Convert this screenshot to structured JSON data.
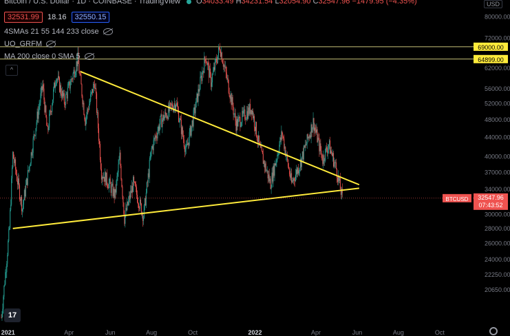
{
  "header": {
    "symbol_title": "Bitcoin / U.S. Dollar · 1D · COINBASE · TradingView",
    "open_label": "O",
    "open": "34033.49",
    "high_label": "H",
    "high": "34231.54",
    "low_label": "L",
    "low": "32054.90",
    "close_label": "C",
    "close": "32547.96",
    "change": "−1479.95 (−4.35%)",
    "bid": "32531.99",
    "spread": "18.16",
    "ask": "32550.15",
    "currency_button": "USD"
  },
  "indicators": [
    {
      "label": "4SMAs 21 55 144 233 close"
    },
    {
      "label": "UO_GRFM"
    },
    {
      "label": "MA 200 close 0 SMA 5"
    }
  ],
  "colors": {
    "background": "#000000",
    "up": "#26a69a",
    "down": "#ef5350",
    "trendline": "#ffeb3b",
    "level_label": "#ffeb3b",
    "price_label": "#ef5350"
  },
  "icons": {
    "logo": "tradingview-logo-icon",
    "settings": "gear-icon",
    "collapse": "chevron-up-icon",
    "visibility": "eye-off-icon"
  },
  "chart_data": {
    "type": "candlestick",
    "symbol": "BTCUSD",
    "y_scale": "log",
    "ylim": [
      17000,
      87000
    ],
    "y_ticks": [
      80000,
      72000,
      62000,
      56000,
      52000,
      48000,
      44000,
      40000,
      37000,
      34000,
      30000,
      28000,
      26000,
      24000,
      22250,
      20650
    ],
    "x_ticks": [
      "2021",
      "Apr",
      "Jun",
      "Aug",
      "Oct",
      "2022",
      "Apr",
      "Jun",
      "Aug",
      "Oct"
    ],
    "x_tick_dates": [
      "2021-01-01",
      "2021-04-01",
      "2021-06-01",
      "2021-08-01",
      "2021-10-01",
      "2022-01-01",
      "2022-04-01",
      "2022-06-01",
      "2022-08-01",
      "2022-10-01"
    ],
    "xlim": [
      "2020-12-20",
      "2022-11-20"
    ],
    "price_path": [
      [
        "2020-12-22",
        18000
      ],
      [
        "2021-01-03",
        28000
      ],
      [
        "2021-01-08",
        40500
      ],
      [
        "2021-01-22",
        31000
      ],
      [
        "2021-02-08",
        44000
      ],
      [
        "2021-02-21",
        57000
      ],
      [
        "2021-02-28",
        45000
      ],
      [
        "2021-03-13",
        60000
      ],
      [
        "2021-03-25",
        52500
      ],
      [
        "2021-04-14",
        64800
      ],
      [
        "2021-04-25",
        48000
      ],
      [
        "2021-05-09",
        58000
      ],
      [
        "2021-05-19",
        37000
      ],
      [
        "2021-05-30",
        35000
      ],
      [
        "2021-06-08",
        33000
      ],
      [
        "2021-06-15",
        40000
      ],
      [
        "2021-06-22",
        29500
      ],
      [
        "2021-07-05",
        35000
      ],
      [
        "2021-07-20",
        29800
      ],
      [
        "2021-08-01",
        41500
      ],
      [
        "2021-08-14",
        47500
      ],
      [
        "2021-09-06",
        52500
      ],
      [
        "2021-09-21",
        41000
      ],
      [
        "2021-10-01",
        48000
      ],
      [
        "2021-10-20",
        66000
      ],
      [
        "2021-10-28",
        58000
      ],
      [
        "2021-11-10",
        69000
      ],
      [
        "2021-11-26",
        54000
      ],
      [
        "2021-12-04",
        47000
      ],
      [
        "2021-12-27",
        51000
      ],
      [
        "2022-01-08",
        41500
      ],
      [
        "2022-01-24",
        35000
      ],
      [
        "2022-02-10",
        45000
      ],
      [
        "2022-02-24",
        35000
      ],
      [
        "2022-03-08",
        38500
      ],
      [
        "2022-03-28",
        47500
      ],
      [
        "2022-04-11",
        39500
      ],
      [
        "2022-04-20",
        42500
      ],
      [
        "2022-05-01",
        37700
      ],
      [
        "2022-05-10",
        32548
      ]
    ],
    "horizontal_levels": [
      69000.0,
      64899.0
    ],
    "level_labels": [
      "69000.00",
      "64899.00"
    ],
    "trendlines": [
      {
        "from": [
          "2021-04-18",
          61000
        ],
        "to": [
          "2022-06-04",
          34800
        ]
      },
      {
        "from": [
          "2021-01-08",
          28000
        ],
        "to": [
          "2022-06-04",
          34200
        ]
      }
    ],
    "last_price": 32547.96,
    "last_price_label": "32547.96",
    "price_tag": "BTCUSD",
    "countdown": "07:43:52"
  }
}
